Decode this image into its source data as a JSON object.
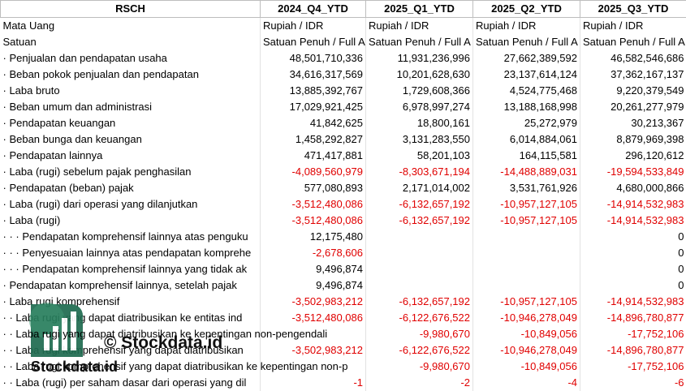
{
  "header": [
    "RSCH",
    "2024_Q4_YTD",
    "2025_Q1_YTD",
    "2025_Q2_YTD",
    "2025_Q3_YTD"
  ],
  "rows": [
    [
      "Mata Uang",
      "Rupiah / IDR",
      "Rupiah / IDR",
      "Rupiah / IDR",
      "Rupiah / IDR"
    ],
    [
      "Satuan",
      "Satuan Penuh / Full A",
      "Satuan Penuh / Full A",
      "Satuan Penuh / Full A",
      "Satuan Penuh / Full A"
    ],
    [
      "· Penjualan dan pendapatan usaha",
      "48,501,710,336",
      "11,931,236,996",
      "27,662,389,592",
      "46,582,546,686"
    ],
    [
      "· Beban pokok penjualan dan pendapatan",
      "34,616,317,569",
      "10,201,628,630",
      "23,137,614,124",
      "37,362,167,137"
    ],
    [
      "· Laba bruto",
      "13,885,392,767",
      "1,729,608,366",
      "4,524,775,468",
      "9,220,379,549"
    ],
    [
      "· Beban umum dan administrasi",
      "17,029,921,425",
      "6,978,997,274",
      "13,188,168,998",
      "20,261,277,979"
    ],
    [
      "· Pendapatan keuangan",
      "41,842,625",
      "18,800,161",
      "25,272,979",
      "30,213,367"
    ],
    [
      "· Beban bunga dan keuangan",
      "1,458,292,827",
      "3,131,283,550",
      "6,014,884,061",
      "8,879,969,398"
    ],
    [
      "· Pendapatan lainnya",
      "471,417,881",
      "58,201,103",
      "164,115,581",
      "296,120,612"
    ],
    [
      "· Laba (rugi) sebelum pajak penghasilan",
      "-4,089,560,979",
      "-8,303,671,194",
      "-14,488,889,031",
      "-19,594,533,849"
    ],
    [
      "· Pendapatan (beban) pajak",
      "577,080,893",
      "2,171,014,002",
      "3,531,761,926",
      "4,680,000,866"
    ],
    [
      "· Laba (rugi) dari operasi yang dilanjutkan",
      "-3,512,480,086",
      "-6,132,657,192",
      "-10,957,127,105",
      "-14,914,532,983"
    ],
    [
      "· Laba (rugi)",
      "-3,512,480,086",
      "-6,132,657,192",
      "-10,957,127,105",
      "-14,914,532,983"
    ],
    [
      "· · · Pendapatan komprehensif lainnya atas penguku",
      "12,175,480",
      null,
      null,
      "0"
    ],
    [
      "· · · Penyesuaian lainnya atas pendapatan komprehe",
      "-2,678,606",
      null,
      null,
      "0"
    ],
    [
      "· · · Pendapatan komprehensif lainnya yang tidak ak",
      "9,496,874",
      null,
      null,
      "0"
    ],
    [
      "· Pendapatan komprehensif lainnya, setelah pajak",
      "9,496,874",
      null,
      null,
      "0"
    ],
    [
      "· Laba rugi komprehensif",
      "-3,502,983,212",
      "-6,132,657,192",
      "-10,957,127,105",
      "-14,914,532,983"
    ],
    [
      "· · Laba rugi yang dapat diatribusikan ke entitas ind",
      "-3,512,480,086",
      "-6,122,676,522",
      "-10,946,278,049",
      "-14,896,780,877"
    ],
    [
      "· · Laba rugi yang dapat diatribusikan ke kepentingan non-pengendali",
      null,
      "-9,980,670",
      "-10,849,056",
      "-17,752,106"
    ],
    [
      "· · Laba rugi komprehensif yang dapat diatribusikan",
      "-3,502,983,212",
      "-6,122,676,522",
      "-10,946,278,049",
      "-14,896,780,877"
    ],
    [
      "· · Laba rugi komprehensif yang dapat diatribusikan ke kepentingan non-p",
      null,
      "-9,980,670",
      "-10,849,056",
      "-17,752,106"
    ],
    [
      "· · Laba (rugi) per saham dasar dari operasi yang dil",
      "-1",
      "-2",
      "-4",
      "-6"
    ]
  ],
  "watermark": {
    "text": "© Stockdata.id",
    "brand": "Stockdata.id"
  }
}
